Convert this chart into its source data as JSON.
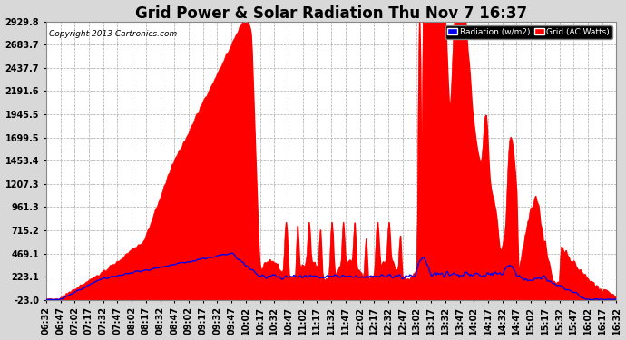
{
  "title": "Grid Power & Solar Radiation Thu Nov 7 16:37",
  "copyright": "Copyright 2013 Cartronics.com",
  "legend_labels": [
    "Radiation (w/m2)",
    "Grid (AC Watts)"
  ],
  "legend_colors": [
    "#0000ee",
    "#ff0000"
  ],
  "yticks": [
    -23.0,
    223.1,
    469.1,
    715.2,
    961.3,
    1207.3,
    1453.4,
    1699.5,
    1945.5,
    2191.6,
    2437.7,
    2683.7,
    2929.8
  ],
  "ylim": [
    -23.0,
    2929.8
  ],
  "background_color": "#d8d8d8",
  "plot_bg_color": "#ffffff",
  "grid_color": "#aaaaaa",
  "red_color": "#ff0000",
  "blue_color": "#0000ee",
  "title_fontsize": 12,
  "xlabel_fontsize": 6.5,
  "ylabel_fontsize": 8,
  "xtick_labels": [
    "06:32",
    "06:47",
    "07:02",
    "07:17",
    "07:32",
    "07:47",
    "08:02",
    "08:17",
    "08:32",
    "08:47",
    "09:02",
    "09:17",
    "09:32",
    "09:47",
    "10:02",
    "10:17",
    "10:32",
    "10:47",
    "11:02",
    "11:17",
    "11:32",
    "11:47",
    "12:02",
    "12:17",
    "12:32",
    "12:47",
    "13:02",
    "13:17",
    "13:32",
    "13:47",
    "14:02",
    "14:17",
    "14:32",
    "14:47",
    "15:02",
    "15:17",
    "15:32",
    "15:47",
    "16:02",
    "16:17",
    "16:32"
  ]
}
